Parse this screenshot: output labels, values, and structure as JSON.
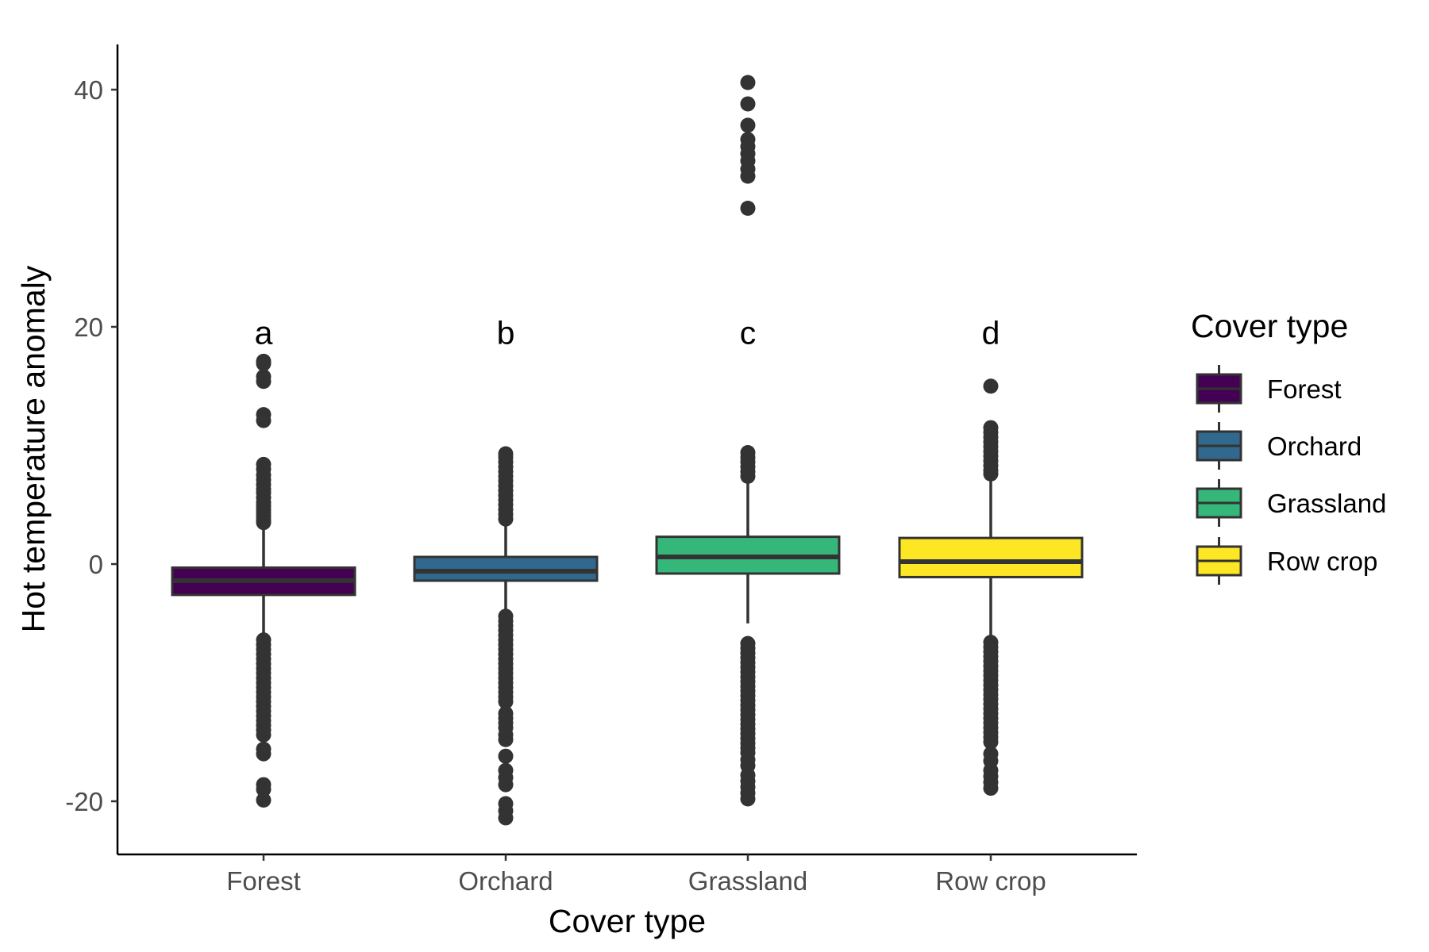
{
  "chart_data": {
    "type": "box",
    "title": "",
    "xlabel": "Cover type",
    "ylabel": "Hot temperature anomaly",
    "categories": [
      "Forest",
      "Orchard",
      "Grassland",
      "Row crop"
    ],
    "ylim": [
      -24.5,
      44
    ],
    "yticks": [
      -20,
      0,
      20,
      40
    ],
    "grid": false,
    "legend": {
      "title": "Cover type",
      "position": "right",
      "entries": [
        "Forest",
        "Orchard",
        "Grassland",
        "Row crop"
      ]
    },
    "colors": {
      "Forest": "#440154",
      "Orchard": "#31688E",
      "Grassland": "#35B779",
      "Row crop": "#FDE725",
      "outline": "#333333"
    },
    "annotations": [
      "a",
      "b",
      "c",
      "d"
    ],
    "annotation_y": 19.5,
    "boxes": [
      {
        "name": "Forest",
        "q1": -2.6,
        "median": -1.4,
        "q3": -0.3,
        "whisker_low": -6.2,
        "whisker_high": 3.2,
        "outliers": [
          17.1,
          16.9,
          15.8,
          15.4,
          12.6,
          12.1,
          8.4,
          8.0,
          7.5,
          7.1,
          6.7,
          6.3,
          6.0,
          5.6,
          5.2,
          4.9,
          4.6,
          4.3,
          4.0,
          3.7,
          3.5,
          -6.4,
          -6.8,
          -7.2,
          -7.6,
          -8.0,
          -8.4,
          -8.8,
          -9.2,
          -9.6,
          -10.0,
          -10.4,
          -10.8,
          -11.2,
          -11.6,
          -12.0,
          -12.4,
          -12.8,
          -13.2,
          -13.6,
          -14.0,
          -14.4,
          -15.6,
          -16.0,
          -18.6,
          -19.0,
          -19.9
        ]
      },
      {
        "name": "Orchard",
        "q1": -1.4,
        "median": -0.6,
        "q3": 0.6,
        "whisker_low": -4.2,
        "whisker_high": 3.4,
        "outliers": [
          9.3,
          9.0,
          8.6,
          8.2,
          7.8,
          7.4,
          7.0,
          6.6,
          6.2,
          5.8,
          5.4,
          5.0,
          4.6,
          4.2,
          3.8,
          -4.4,
          -4.8,
          -5.2,
          -5.6,
          -6.0,
          -6.4,
          -6.8,
          -7.2,
          -7.6,
          -8.0,
          -8.4,
          -8.8,
          -9.2,
          -9.6,
          -10.0,
          -10.4,
          -10.8,
          -11.2,
          -11.6,
          -12.6,
          -13.0,
          -13.4,
          -13.8,
          -14.4,
          -14.8,
          -16.2,
          -17.4,
          -18.0,
          -18.6,
          -20.2,
          -20.8,
          -21.4
        ]
      },
      {
        "name": "Grassland",
        "q1": -0.8,
        "median": 0.6,
        "q3": 2.3,
        "whisker_low": -5.0,
        "whisker_high": 6.9,
        "outliers": [
          40.6,
          38.8,
          37.0,
          35.8,
          35.2,
          34.6,
          34.0,
          33.3,
          32.7,
          30.0,
          9.4,
          9.0,
          8.6,
          8.2,
          7.8,
          7.4,
          -6.7,
          -7.1,
          -7.5,
          -7.9,
          -8.3,
          -8.7,
          -9.1,
          -9.5,
          -9.9,
          -10.3,
          -10.7,
          -11.1,
          -11.5,
          -11.9,
          -12.3,
          -12.7,
          -13.1,
          -13.5,
          -13.9,
          -14.3,
          -14.7,
          -15.1,
          -15.5,
          -15.9,
          -16.5,
          -17.0,
          -17.8,
          -18.3,
          -18.8,
          -19.3,
          -19.8
        ]
      },
      {
        "name": "Row crop",
        "q1": -1.1,
        "median": 0.2,
        "q3": 2.2,
        "whisker_low": -6.4,
        "whisker_high": 7.4,
        "outliers": [
          15.0,
          11.5,
          11.1,
          10.7,
          10.3,
          9.9,
          9.5,
          9.1,
          8.7,
          8.3,
          7.9,
          7.6,
          -6.6,
          -7.0,
          -7.4,
          -7.8,
          -8.2,
          -8.6,
          -9.0,
          -9.4,
          -9.8,
          -10.2,
          -10.6,
          -11.0,
          -11.4,
          -11.8,
          -12.2,
          -12.6,
          -13.0,
          -13.4,
          -13.8,
          -14.2,
          -14.6,
          -15.0,
          -16.0,
          -16.6,
          -17.4,
          -17.9,
          -18.4,
          -18.9
        ]
      }
    ]
  }
}
